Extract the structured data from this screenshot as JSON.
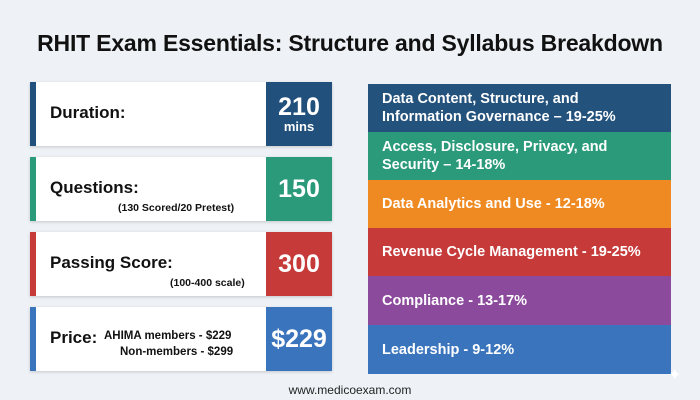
{
  "title": "RHIT Exam Essentials: Structure and Syllabus Breakdown",
  "cards": {
    "duration": {
      "label": "Duration:",
      "value": "210",
      "unit": "mins"
    },
    "questions": {
      "label": "Questions:",
      "sub": "(130 Scored/20 Pretest)",
      "value": "150"
    },
    "passing": {
      "label": "Passing Score:",
      "sub": "(100-400 scale)",
      "value": "300"
    },
    "price": {
      "label": "Price:",
      "line1": "AHIMA members - $229",
      "line2": "Non-members - $299",
      "value": "$229"
    }
  },
  "domains": [
    {
      "line1": "Data Content, Structure, and",
      "line2": "Information Governance – 19-25%",
      "color": "#23527c"
    },
    {
      "line1": "Access, Disclosure, Privacy, and",
      "line2": "Security – 14-18%",
      "color": "#2a9a7a"
    },
    {
      "line1": "Data Analytics and Use - 12-18%",
      "line2": "",
      "color": "#ef8a22"
    },
    {
      "line1": "Revenue Cycle Management - 19-25%",
      "line2": "",
      "color": "#c63a3a"
    },
    {
      "line1": "Compliance - 13-17%",
      "line2": "",
      "color": "#8c4a9c"
    },
    {
      "line1": "Leadership - 9-12%",
      "line2": "",
      "color": "#3a74bc"
    }
  ],
  "colors": {
    "blue": "#22507c",
    "teal": "#2a9a7a",
    "red": "#c63a3a",
    "lightblue": "#3a74bc"
  },
  "footer": "www.medicoexam.com",
  "sparkle_icon": "sparkle-icon"
}
